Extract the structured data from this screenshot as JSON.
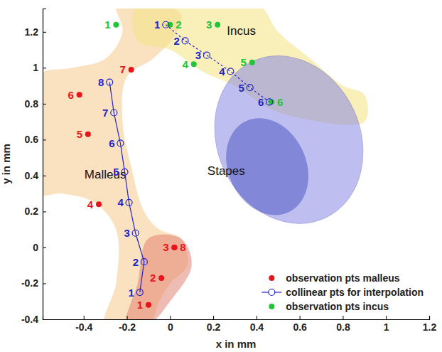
{
  "chart_data": {
    "type": "scatter",
    "x_label": "x in mm",
    "y_label": "y in mm",
    "xlim": [
      -0.59,
      1.2
    ],
    "ylim": [
      -0.4,
      1.33
    ],
    "xticks": [
      -0.4,
      -0.2,
      0,
      0.2,
      0.4,
      0.6,
      0.8,
      1,
      1.2
    ],
    "yticks": [
      -0.4,
      -0.2,
      0,
      0.2,
      0.4,
      0.6,
      0.8,
      1,
      1.2
    ],
    "grid": false,
    "legend": "lower right",
    "series": [
      {
        "name": "observation pts malleus",
        "color": "#e8141a",
        "marker": "circle",
        "line_style": "none",
        "labels": [
          "1",
          "2",
          "3",
          "4",
          "5",
          "6",
          "7",
          "8"
        ],
        "x": [
          -0.1,
          -0.04,
          0.02,
          -0.33,
          -0.38,
          -0.42,
          -0.18,
          0.02
        ],
        "values": [
          -0.32,
          -0.17,
          0.0,
          0.24,
          0.63,
          0.85,
          0.99,
          0.0
        ]
      },
      {
        "name": "collinear pts for interpolation",
        "color": "#2323c8",
        "marker": "open_circle",
        "line_style": "solid",
        "labels": [
          "1",
          "2",
          "3",
          "4",
          "5",
          "6",
          "7",
          "8"
        ],
        "x": [
          -0.14,
          -0.12,
          -0.16,
          -0.19,
          -0.21,
          -0.23,
          -0.26,
          -0.28
        ],
        "values": [
          -0.25,
          -0.08,
          0.08,
          0.25,
          0.42,
          0.58,
          0.75,
          0.92
        ]
      },
      {
        "name": "observation pts incus",
        "color": "#22c43a",
        "marker": "circle",
        "line_style": "none",
        "labels": [
          "1",
          "2",
          "3",
          "4",
          "5",
          "6"
        ],
        "x": [
          -0.25,
          0.0,
          0.22,
          0.11,
          0.38,
          0.47
        ],
        "values": [
          1.24,
          1.24,
          1.24,
          1.02,
          1.03,
          0.81
        ]
      },
      {
        "name": "collinear pts for interpolation",
        "color": "#2323c8",
        "marker": "open_circle",
        "line_style": "dashed",
        "labels": [
          "1",
          "2",
          "3",
          "4",
          "5",
          "6"
        ],
        "x": [
          -0.02,
          0.07,
          0.17,
          0.28,
          0.37,
          0.46
        ],
        "values": [
          1.24,
          1.15,
          1.07,
          0.98,
          0.89,
          0.81
        ]
      }
    ],
    "annotations": [
      {
        "text": "Malleus",
        "x": -0.3,
        "y": 0.4
      },
      {
        "text": "Incus",
        "x": 0.33,
        "y": 1.2
      },
      {
        "text": "Stapes",
        "x": 0.26,
        "y": 0.42
      }
    ]
  }
}
